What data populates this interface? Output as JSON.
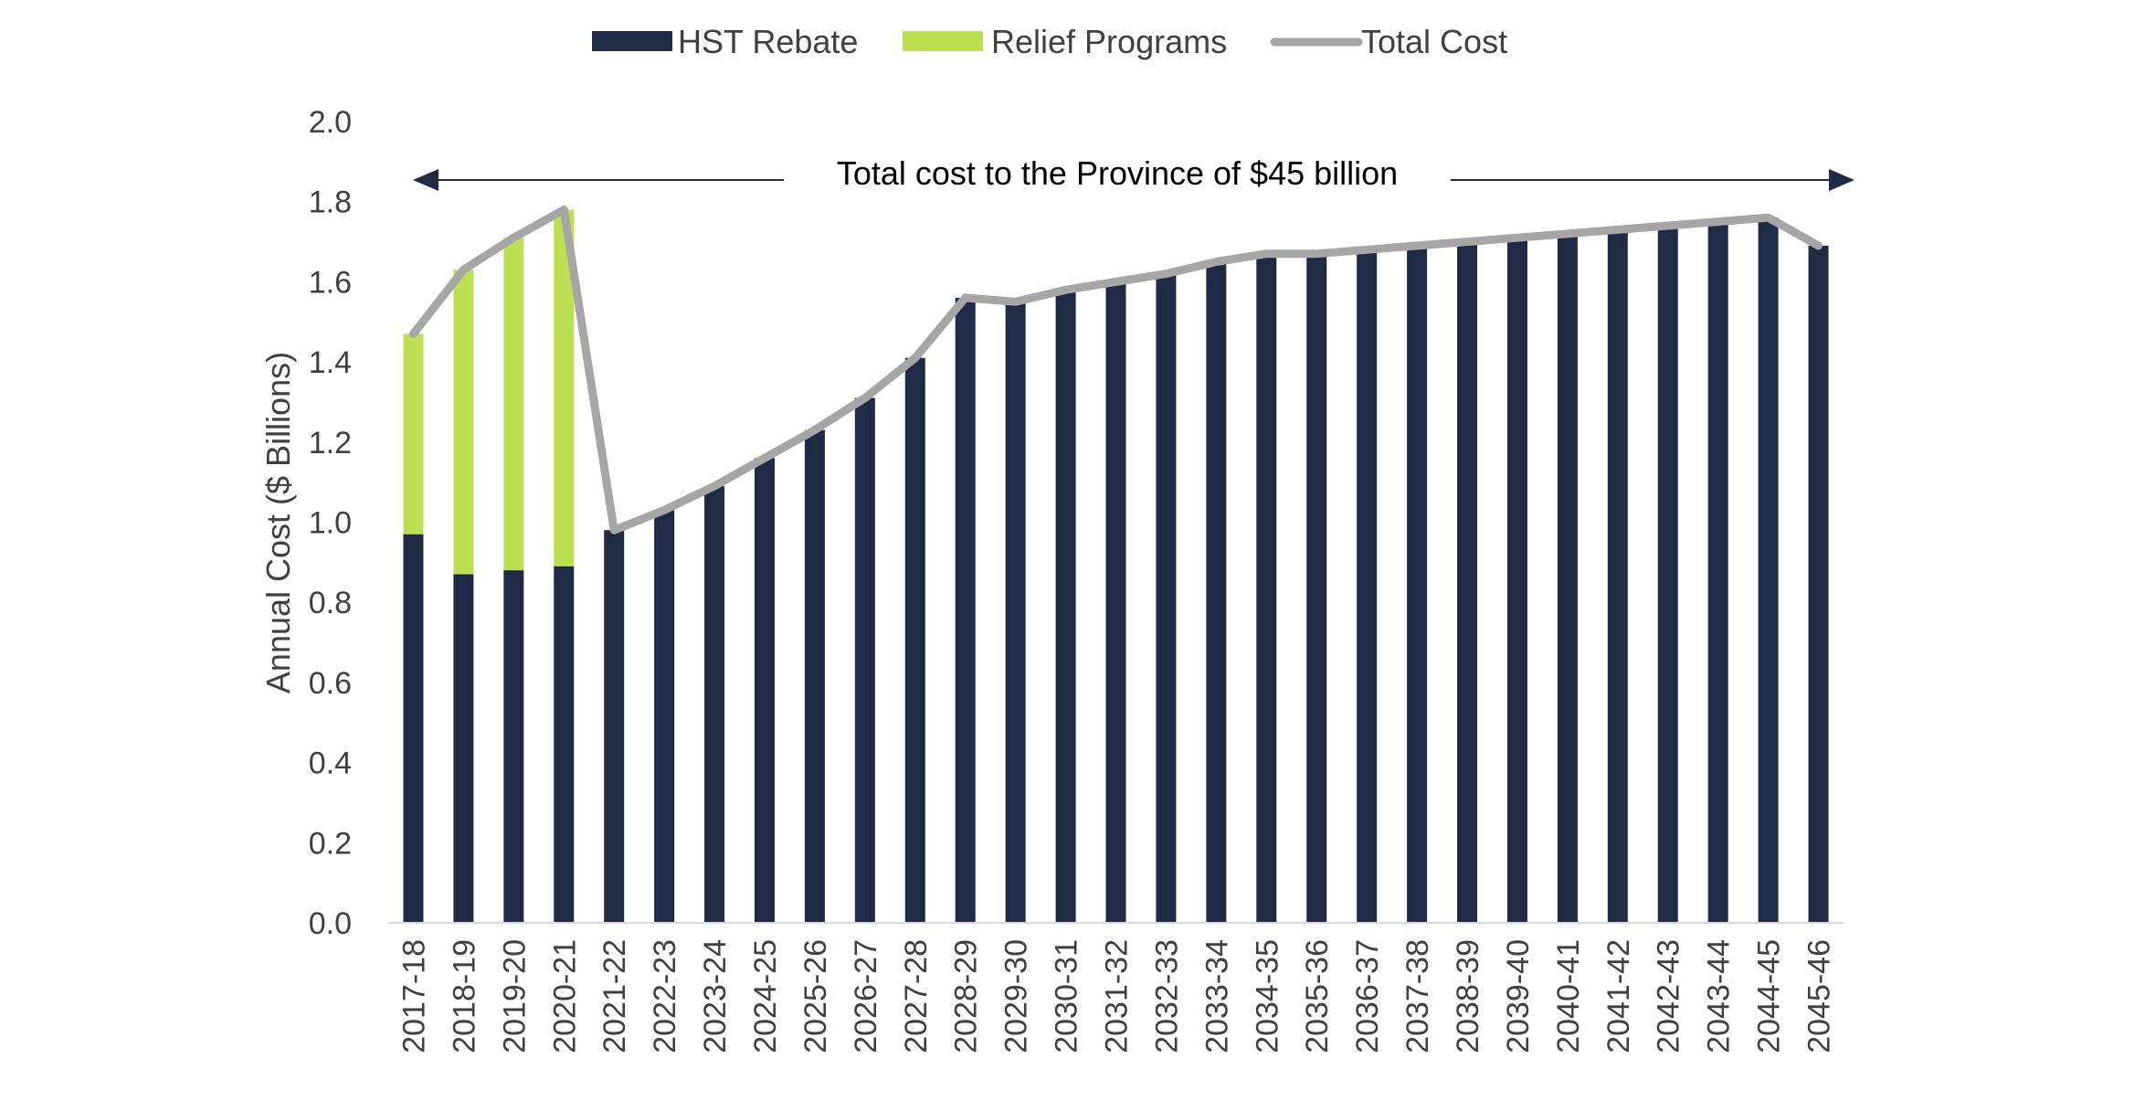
{
  "chart_data": {
    "type": "bar",
    "stacked": true,
    "ylabel": "Annual Cost ($ Billions)",
    "xlabel": "",
    "ylim": [
      0,
      2.0
    ],
    "yticks": [
      "0.0",
      "0.2",
      "0.4",
      "0.6",
      "0.8",
      "1.0",
      "1.2",
      "1.4",
      "1.6",
      "1.8",
      "2.0"
    ],
    "grid": false,
    "legend_position": "top",
    "categories": [
      "2017-18",
      "2018-19",
      "2019-20",
      "2020-21",
      "2021-22",
      "2022-23",
      "2023-24",
      "2024-25",
      "2025-26",
      "2026-27",
      "2027-28",
      "2028-29",
      "2029-30",
      "2030-31",
      "2031-32",
      "2032-33",
      "2033-34",
      "2034-35",
      "2035-36",
      "2036-37",
      "2037-38",
      "2038-39",
      "2039-40",
      "2040-41",
      "2041-42",
      "2042-43",
      "2043-44",
      "2044-45",
      "2045-46"
    ],
    "series": [
      {
        "name": "HST Rebate",
        "kind": "bar",
        "color": "#1f2a44",
        "values": [
          0.97,
          0.87,
          0.88,
          0.89,
          0.98,
          1.03,
          1.09,
          1.16,
          1.23,
          1.31,
          1.41,
          1.56,
          1.55,
          1.58,
          1.6,
          1.62,
          1.65,
          1.67,
          1.67,
          1.68,
          1.69,
          1.7,
          1.71,
          1.72,
          1.73,
          1.74,
          1.75,
          1.76,
          1.69
        ]
      },
      {
        "name": "Relief Programs",
        "kind": "bar",
        "color": "#bde053",
        "values": [
          0.5,
          0.76,
          0.83,
          0.89,
          0,
          0,
          0,
          0,
          0,
          0,
          0,
          0,
          0,
          0,
          0,
          0,
          0,
          0,
          0,
          0,
          0,
          0,
          0,
          0,
          0,
          0,
          0,
          0,
          0
        ]
      },
      {
        "name": "Total Cost",
        "kind": "line",
        "color": "#a6a6a6",
        "values": [
          1.47,
          1.63,
          1.71,
          1.78,
          0.98,
          1.03,
          1.09,
          1.16,
          1.23,
          1.31,
          1.41,
          1.56,
          1.55,
          1.58,
          1.6,
          1.62,
          1.65,
          1.67,
          1.67,
          1.68,
          1.69,
          1.7,
          1.71,
          1.72,
          1.73,
          1.74,
          1.75,
          1.76,
          1.69
        ]
      }
    ],
    "annotations": [
      {
        "text": "Total cost to the Province of $45 billion",
        "arrow": "double-headed",
        "color": "#1f2a44"
      }
    ]
  }
}
